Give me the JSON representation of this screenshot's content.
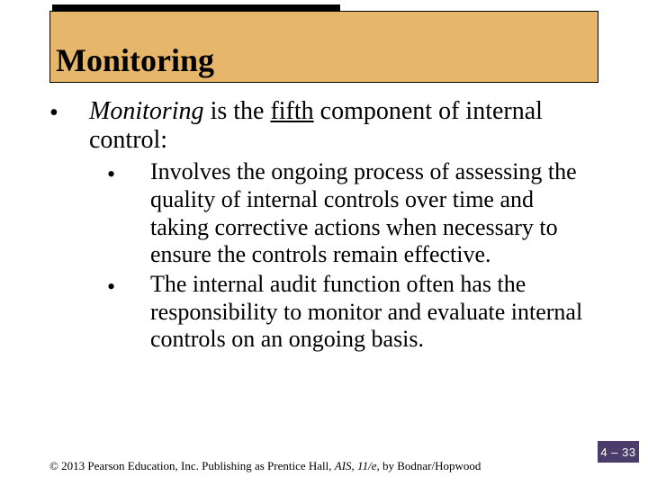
{
  "title": "Monitoring",
  "colors": {
    "title_band_bg": "#e6b76a",
    "title_inner_bg": "#000000",
    "page_badge_bg": "#4a3d6b",
    "page_badge_text": "#ffffff",
    "body_text": "#000000",
    "background": "#ffffff"
  },
  "typography": {
    "title_fontsize": 36,
    "body_fontsize": 28,
    "sub_fontsize": 26,
    "footer_fontsize": 13,
    "font_family": "Times New Roman"
  },
  "main": {
    "lead_italic": "Monitoring",
    "lead_mid": " is the ",
    "lead_underline": "fifth",
    "lead_tail": " component of internal control:",
    "sub": [
      "Involves the ongoing process of assessing the quality of internal controls over time and taking corrective actions when necessary to ensure the controls remain effective.",
      "The internal audit function often has the responsibility to monitor and evaluate internal controls on an ongoing basis."
    ]
  },
  "footer": {
    "copyright_symbol": "©",
    "pre": " 2013 Pearson Education, Inc. Publishing as Prentice Hall, ",
    "ais": "AIS, 11/e",
    "post": ", by Bodnar/Hopwood"
  },
  "page": "4 – 33"
}
